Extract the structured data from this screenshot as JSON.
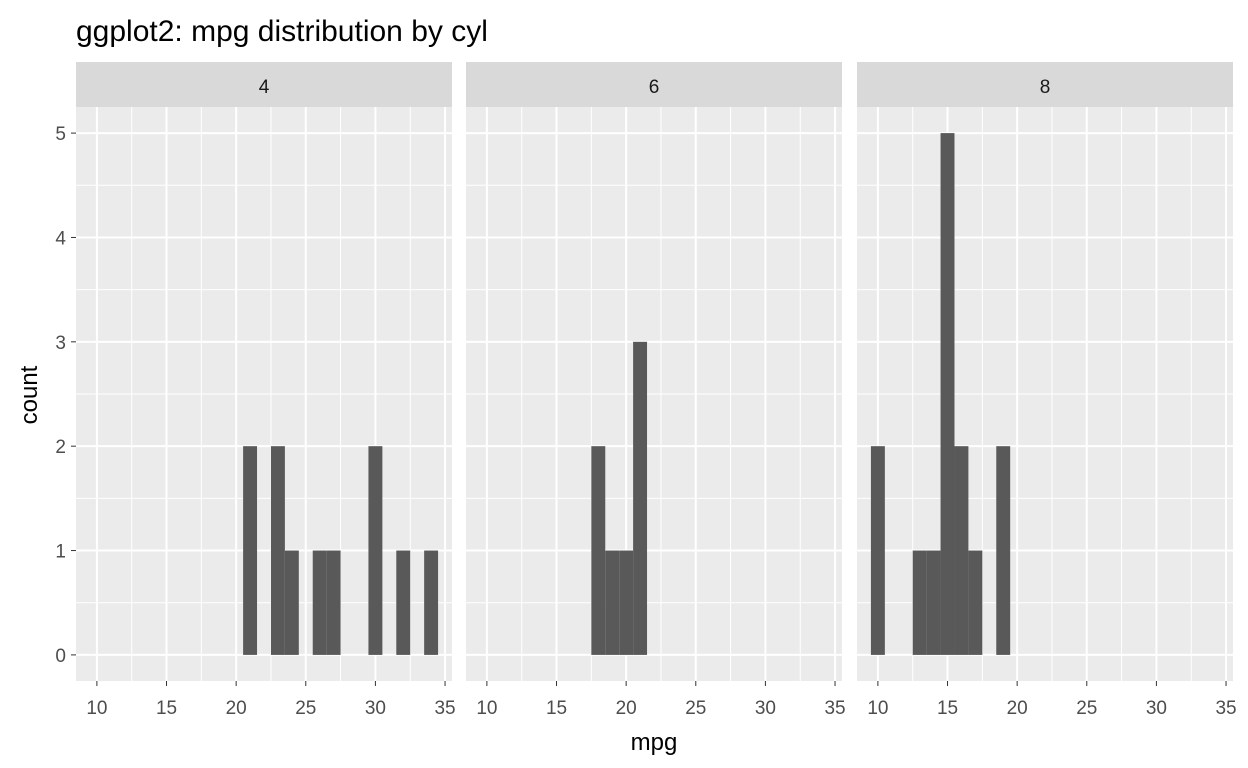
{
  "chart_data": {
    "type": "bar",
    "title": "ggplot2: mpg distribution by cyl",
    "xlabel": "mpg",
    "ylabel": "count",
    "xlim": [
      8.5,
      35.5
    ],
    "ylim": [
      -0.25,
      5.25
    ],
    "x_ticks": [
      10,
      15,
      20,
      25,
      30,
      35
    ],
    "y_ticks": [
      0,
      1,
      2,
      3,
      4,
      5
    ],
    "bin_width": 1,
    "grid": true,
    "bar_color": "#595959",
    "panel_background": "#ebebeb",
    "strip_background": "#d9d9d9",
    "grid_color": "#ffffff",
    "facets": [
      {
        "label": "4",
        "bins": [
          {
            "x": 21,
            "count": 2
          },
          {
            "x": 23,
            "count": 2
          },
          {
            "x": 24,
            "count": 1
          },
          {
            "x": 26,
            "count": 1
          },
          {
            "x": 27,
            "count": 1
          },
          {
            "x": 30,
            "count": 2
          },
          {
            "x": 32,
            "count": 1
          },
          {
            "x": 34,
            "count": 1
          }
        ]
      },
      {
        "label": "6",
        "bins": [
          {
            "x": 18,
            "count": 2
          },
          {
            "x": 19,
            "count": 1
          },
          {
            "x": 20,
            "count": 1
          },
          {
            "x": 21,
            "count": 3
          }
        ]
      },
      {
        "label": "8",
        "bins": [
          {
            "x": 10,
            "count": 2
          },
          {
            "x": 13,
            "count": 1
          },
          {
            "x": 14,
            "count": 1
          },
          {
            "x": 15,
            "count": 5
          },
          {
            "x": 16,
            "count": 2
          },
          {
            "x": 17,
            "count": 1
          },
          {
            "x": 19,
            "count": 2
          }
        ]
      }
    ]
  }
}
